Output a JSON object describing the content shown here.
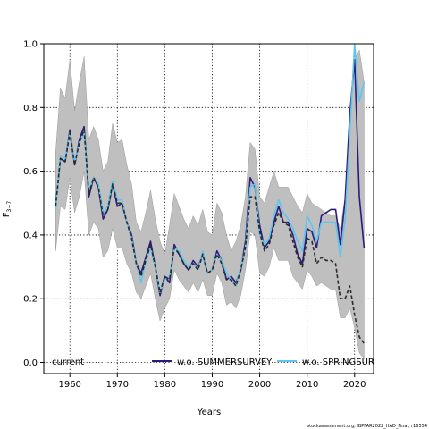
{
  "chart_data": {
    "type": "line",
    "xlabel": "Years",
    "ylabel": "F3-7",
    "ylabel_main": "F",
    "ylabel_sub": "3−7",
    "xlim": [
      1954.5,
      2024
    ],
    "ylim": [
      -0.035,
      1.0
    ],
    "x_ticks": [
      1960,
      1970,
      1980,
      1990,
      2000,
      2010,
      2020
    ],
    "y_ticks": [
      0.0,
      0.2,
      0.4,
      0.6,
      0.8,
      1.0
    ],
    "y_tick_labels": [
      "0.0",
      "0.2",
      "0.4",
      "0.6",
      "0.8",
      "1.0"
    ],
    "grid": true,
    "legend_position": "bottom",
    "legend": [
      {
        "label": "current",
        "color": "#2b2b2b",
        "style": "dashed"
      },
      {
        "label": "w.o. SUMMERSURVEY",
        "color": "#2e1a7a",
        "style": "solid"
      },
      {
        "label": "w.o. SPRINGSURVEY",
        "color": "#5ec5ee",
        "style": "solid"
      }
    ],
    "band": {
      "name": "confidence band",
      "color": "#bfbfbf",
      "x": [
        1957,
        1958,
        1959,
        1960,
        1961,
        1962,
        1963,
        1964,
        1965,
        1966,
        1967,
        1968,
        1969,
        1970,
        1971,
        1972,
        1973,
        1974,
        1975,
        1976,
        1977,
        1978,
        1979,
        1980,
        1981,
        1982,
        1983,
        1984,
        1985,
        1986,
        1987,
        1988,
        1989,
        1990,
        1991,
        1992,
        1993,
        1994,
        1995,
        1996,
        1997,
        1998,
        1999,
        2000,
        2001,
        2002,
        2003,
        2004,
        2005,
        2006,
        2007,
        2008,
        2009,
        2010,
        2011,
        2012,
        2013,
        2014,
        2015,
        2016,
        2017,
        2018,
        2019,
        2020,
        2021,
        2022
      ],
      "upper": [
        0.66,
        0.86,
        0.83,
        0.95,
        0.79,
        0.88,
        0.96,
        0.7,
        0.74,
        0.7,
        0.6,
        0.63,
        0.75,
        0.69,
        0.7,
        0.62,
        0.56,
        0.44,
        0.41,
        0.47,
        0.54,
        0.45,
        0.38,
        0.34,
        0.43,
        0.53,
        0.49,
        0.45,
        0.42,
        0.46,
        0.43,
        0.48,
        0.41,
        0.4,
        0.5,
        0.47,
        0.4,
        0.35,
        0.38,
        0.43,
        0.52,
        0.69,
        0.67,
        0.52,
        0.5,
        0.55,
        0.6,
        0.55,
        0.55,
        0.55,
        0.52,
        0.49,
        0.47,
        0.53,
        0.5,
        0.49,
        0.48,
        0.47,
        0.46,
        0.46,
        0.42,
        0.52,
        0.78,
        0.95,
        0.98,
        0.88
      ],
      "lower": [
        0.35,
        0.49,
        0.48,
        0.58,
        0.47,
        0.52,
        0.6,
        0.4,
        0.44,
        0.42,
        0.33,
        0.35,
        0.42,
        0.36,
        0.36,
        0.31,
        0.28,
        0.22,
        0.2,
        0.24,
        0.28,
        0.2,
        0.13,
        0.17,
        0.2,
        0.29,
        0.26,
        0.24,
        0.22,
        0.25,
        0.22,
        0.26,
        0.21,
        0.21,
        0.28,
        0.25,
        0.18,
        0.19,
        0.17,
        0.21,
        0.29,
        0.41,
        0.4,
        0.28,
        0.27,
        0.3,
        0.36,
        0.32,
        0.32,
        0.32,
        0.27,
        0.25,
        0.23,
        0.29,
        0.27,
        0.24,
        0.25,
        0.24,
        0.23,
        0.23,
        0.14,
        0.14,
        0.17,
        0.11,
        0.03,
        0.01
      ]
    },
    "series": [
      {
        "name": "w.o. SUMMERSURVEY",
        "color": "#2e1a7a",
        "style": "solid",
        "x": [
          1957,
          1958,
          1959,
          1960,
          1961,
          1962,
          1963,
          1964,
          1965,
          1966,
          1967,
          1968,
          1969,
          1970,
          1971,
          1972,
          1973,
          1974,
          1975,
          1976,
          1977,
          1978,
          1979,
          1980,
          1981,
          1982,
          1983,
          1984,
          1985,
          1986,
          1987,
          1988,
          1989,
          1990,
          1991,
          1992,
          1993,
          1994,
          1995,
          1996,
          1997,
          1998,
          1999,
          2000,
          2001,
          2002,
          2003,
          2004,
          2005,
          2006,
          2007,
          2008,
          2009,
          2010,
          2011,
          2012,
          2013,
          2014,
          2015,
          2016,
          2017,
          2018,
          2019,
          2020,
          2021,
          2022
        ],
        "y": [
          0.49,
          0.64,
          0.63,
          0.73,
          0.62,
          0.7,
          0.74,
          0.52,
          0.58,
          0.55,
          0.45,
          0.48,
          0.56,
          0.49,
          0.5,
          0.44,
          0.4,
          0.31,
          0.28,
          0.33,
          0.38,
          0.3,
          0.21,
          0.27,
          0.25,
          0.37,
          0.34,
          0.31,
          0.29,
          0.32,
          0.3,
          0.34,
          0.28,
          0.29,
          0.35,
          0.32,
          0.26,
          0.27,
          0.25,
          0.29,
          0.38,
          0.58,
          0.55,
          0.43,
          0.36,
          0.38,
          0.44,
          0.49,
          0.44,
          0.44,
          0.4,
          0.34,
          0.31,
          0.42,
          0.41,
          0.36,
          0.46,
          0.47,
          0.48,
          0.48,
          0.37,
          0.51,
          0.78,
          0.95,
          0.52,
          0.36
        ]
      },
      {
        "name": "w.o. SPRINGSURVEY",
        "color": "#5ec5ee",
        "style": "solid",
        "x": [
          1957,
          1958,
          1959,
          1960,
          1961,
          1962,
          1963,
          1964,
          1965,
          1966,
          1967,
          1968,
          1969,
          1970,
          1971,
          1972,
          1973,
          1974,
          1975,
          1976,
          1977,
          1978,
          1979,
          1980,
          1981,
          1982,
          1983,
          1984,
          1985,
          1986,
          1987,
          1988,
          1989,
          1990,
          1991,
          1992,
          1993,
          1994,
          1995,
          1996,
          1997,
          1998,
          1999,
          2000,
          2001,
          2002,
          2003,
          2004,
          2005,
          2006,
          2007,
          2008,
          2009,
          2010,
          2011,
          2012,
          2013,
          2014,
          2015,
          2016,
          2017,
          2018,
          2019,
          2020,
          2021,
          2022
        ],
        "y": [
          0.48,
          0.65,
          0.64,
          0.72,
          0.63,
          0.69,
          0.72,
          0.54,
          0.58,
          0.56,
          0.47,
          0.49,
          0.57,
          0.51,
          0.51,
          0.44,
          0.39,
          0.31,
          0.25,
          0.32,
          0.36,
          0.3,
          0.22,
          0.26,
          0.27,
          0.36,
          0.35,
          0.32,
          0.3,
          0.31,
          0.29,
          0.35,
          0.28,
          0.29,
          0.34,
          0.32,
          0.28,
          0.26,
          0.24,
          0.3,
          0.36,
          0.55,
          0.56,
          0.4,
          0.37,
          0.39,
          0.46,
          0.51,
          0.47,
          0.45,
          0.42,
          0.38,
          0.35,
          0.46,
          0.43,
          0.38,
          0.44,
          0.44,
          0.44,
          0.44,
          0.33,
          0.45,
          0.72,
          1.0,
          0.82,
          0.88
        ]
      },
      {
        "name": "current",
        "color": "#2b2b2b",
        "style": "dashed",
        "x": [
          1957,
          1958,
          1959,
          1960,
          1961,
          1962,
          1963,
          1964,
          1965,
          1966,
          1967,
          1968,
          1969,
          1970,
          1971,
          1972,
          1973,
          1974,
          1975,
          1976,
          1977,
          1978,
          1979,
          1980,
          1981,
          1982,
          1983,
          1984,
          1985,
          1986,
          1987,
          1988,
          1989,
          1990,
          1991,
          1992,
          1993,
          1994,
          1995,
          1996,
          1997,
          1998,
          1999,
          2000,
          2001,
          2002,
          2003,
          2004,
          2005,
          2006,
          2007,
          2008,
          2009,
          2010,
          2011,
          2012,
          2013,
          2014,
          2015,
          2016,
          2017,
          2018,
          2019,
          2020,
          2021,
          2022
        ],
        "y": [
          0.49,
          0.64,
          0.63,
          0.72,
          0.62,
          0.69,
          0.73,
          0.53,
          0.58,
          0.55,
          0.46,
          0.48,
          0.56,
          0.5,
          0.5,
          0.44,
          0.39,
          0.31,
          0.27,
          0.32,
          0.37,
          0.3,
          0.22,
          0.27,
          0.26,
          0.36,
          0.34,
          0.31,
          0.29,
          0.31,
          0.29,
          0.34,
          0.28,
          0.29,
          0.34,
          0.31,
          0.26,
          0.26,
          0.24,
          0.29,
          0.36,
          0.52,
          0.52,
          0.41,
          0.35,
          0.37,
          0.43,
          0.47,
          0.44,
          0.43,
          0.38,
          0.33,
          0.3,
          0.39,
          0.38,
          0.31,
          0.33,
          0.32,
          0.32,
          0.31,
          0.2,
          0.2,
          0.24,
          0.15,
          0.08,
          0.06
        ]
      }
    ],
    "footer": "stockassessment.org, IBPFAR2022_HAD_Final, r16554"
  }
}
